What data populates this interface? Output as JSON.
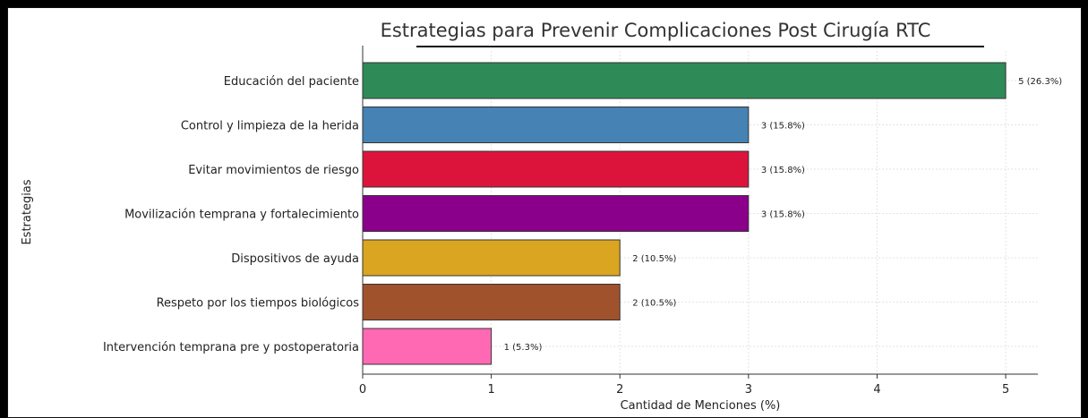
{
  "chart_data": {
    "type": "bar",
    "orientation": "horizontal",
    "title": "Estrategias para Prevenir Complicaciones Post Cirugía RTC",
    "xlabel": "Cantidad de Menciones (%)",
    "ylabel": "Estrategias",
    "xlim": [
      0,
      5.25
    ],
    "x_ticks": [
      "0",
      "1",
      "2",
      "3",
      "4",
      "5"
    ],
    "grid": true,
    "categories": [
      "Educación del paciente",
      "Control y limpieza de la herida",
      "Evitar movimientos de riesgo",
      "Movilización temprana y fortalecimiento",
      "Dispositivos de ayuda",
      "Respeto por los tiempos biológicos",
      "Intervención temprana pre y postoperatoria"
    ],
    "values": [
      5,
      3,
      3,
      3,
      2,
      2,
      1
    ],
    "value_labels": [
      "5 (26.3%)",
      "3 (15.8%)",
      "3 (15.8%)",
      "3 (15.8%)",
      "2 (10.5%)",
      "2 (10.5%)",
      "1 (5.3%)"
    ],
    "colors": [
      "#2e8b57",
      "#4682b4",
      "#dc143c",
      "#8b008b",
      "#daa520",
      "#a0522d",
      "#ff69b4"
    ]
  }
}
